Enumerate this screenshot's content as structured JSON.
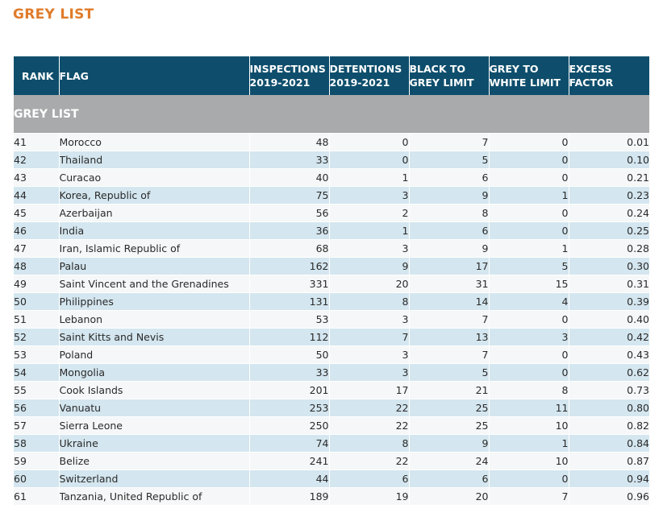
{
  "page": {
    "title": "GREY LIST"
  },
  "table": {
    "headers": {
      "rank": "RANK",
      "flag": "FLAG",
      "inspections_1": "INSPECTIONS",
      "inspections_2": "2019-2021",
      "detentions_1": "DETENTIONS",
      "detentions_2": "2019-2021",
      "black_to_grey_1": "BLACK TO",
      "black_to_grey_2": "GREY LIMIT",
      "grey_to_white_1": "GREY TO",
      "grey_to_white_2": "WHITE LIMIT",
      "excess_1": "EXCESS",
      "excess_2": "FACTOR"
    },
    "section_label": "GREY LIST",
    "rows": [
      {
        "rank": "41",
        "flag": "Morocco",
        "inspections": "48",
        "detentions": "0",
        "black_to_grey": "7",
        "grey_to_white": "0",
        "excess": "0.01"
      },
      {
        "rank": "42",
        "flag": "Thailand",
        "inspections": "33",
        "detentions": "0",
        "black_to_grey": "5",
        "grey_to_white": "0",
        "excess": "0.10"
      },
      {
        "rank": "43",
        "flag": "Curacao",
        "inspections": "40",
        "detentions": "1",
        "black_to_grey": "6",
        "grey_to_white": "0",
        "excess": "0.21"
      },
      {
        "rank": "44",
        "flag": "Korea, Republic of",
        "inspections": "75",
        "detentions": "3",
        "black_to_grey": "9",
        "grey_to_white": "1",
        "excess": "0.23"
      },
      {
        "rank": "45",
        "flag": "Azerbaijan",
        "inspections": "56",
        "detentions": "2",
        "black_to_grey": "8",
        "grey_to_white": "0",
        "excess": "0.24"
      },
      {
        "rank": "46",
        "flag": "India",
        "inspections": "36",
        "detentions": "1",
        "black_to_grey": "6",
        "grey_to_white": "0",
        "excess": "0.25"
      },
      {
        "rank": "47",
        "flag": "Iran, Islamic Republic of",
        "inspections": "68",
        "detentions": "3",
        "black_to_grey": "9",
        "grey_to_white": "1",
        "excess": "0.28"
      },
      {
        "rank": "48",
        "flag": "Palau",
        "inspections": "162",
        "detentions": "9",
        "black_to_grey": "17",
        "grey_to_white": "5",
        "excess": "0.30"
      },
      {
        "rank": "49",
        "flag": "Saint Vincent and the Grenadines",
        "inspections": "331",
        "detentions": "20",
        "black_to_grey": "31",
        "grey_to_white": "15",
        "excess": "0.31"
      },
      {
        "rank": "50",
        "flag": "Philippines",
        "inspections": "131",
        "detentions": "8",
        "black_to_grey": "14",
        "grey_to_white": "4",
        "excess": "0.39"
      },
      {
        "rank": "51",
        "flag": "Lebanon",
        "inspections": "53",
        "detentions": "3",
        "black_to_grey": "7",
        "grey_to_white": "0",
        "excess": "0.40"
      },
      {
        "rank": "52",
        "flag": "Saint Kitts and Nevis",
        "inspections": "112",
        "detentions": "7",
        "black_to_grey": "13",
        "grey_to_white": "3",
        "excess": "0.42"
      },
      {
        "rank": "53",
        "flag": "Poland",
        "inspections": "50",
        "detentions": "3",
        "black_to_grey": "7",
        "grey_to_white": "0",
        "excess": "0.43"
      },
      {
        "rank": "54",
        "flag": "Mongolia",
        "inspections": "33",
        "detentions": "3",
        "black_to_grey": "5",
        "grey_to_white": "0",
        "excess": "0.62"
      },
      {
        "rank": "55",
        "flag": "Cook Islands",
        "inspections": "201",
        "detentions": "17",
        "black_to_grey": "21",
        "grey_to_white": "8",
        "excess": "0.73"
      },
      {
        "rank": "56",
        "flag": "Vanuatu",
        "inspections": "253",
        "detentions": "22",
        "black_to_grey": "25",
        "grey_to_white": "11",
        "excess": "0.80"
      },
      {
        "rank": "57",
        "flag": "Sierra Leone",
        "inspections": "250",
        "detentions": "22",
        "black_to_grey": "25",
        "grey_to_white": "10",
        "excess": "0.82"
      },
      {
        "rank": "58",
        "flag": "Ukraine",
        "inspections": "74",
        "detentions": "8",
        "black_to_grey": "9",
        "grey_to_white": "1",
        "excess": "0.84"
      },
      {
        "rank": "59",
        "flag": "Belize",
        "inspections": "241",
        "detentions": "22",
        "black_to_grey": "24",
        "grey_to_white": "10",
        "excess": "0.87"
      },
      {
        "rank": "60",
        "flag": "Switzerland",
        "inspections": "44",
        "detentions": "6",
        "black_to_grey": "6",
        "grey_to_white": "0",
        "excess": "0.94"
      },
      {
        "rank": "61",
        "flag": "Tanzania, United Republic of",
        "inspections": "189",
        "detentions": "19",
        "black_to_grey": "20",
        "grey_to_white": "7",
        "excess": "0.96"
      }
    ]
  },
  "colors": {
    "title": "#e07b2a",
    "header_bg": "#0e4e6c",
    "section_bg": "#a9aaab",
    "row_light": "#f5f7f8",
    "row_blue": "#d4e6ef"
  }
}
